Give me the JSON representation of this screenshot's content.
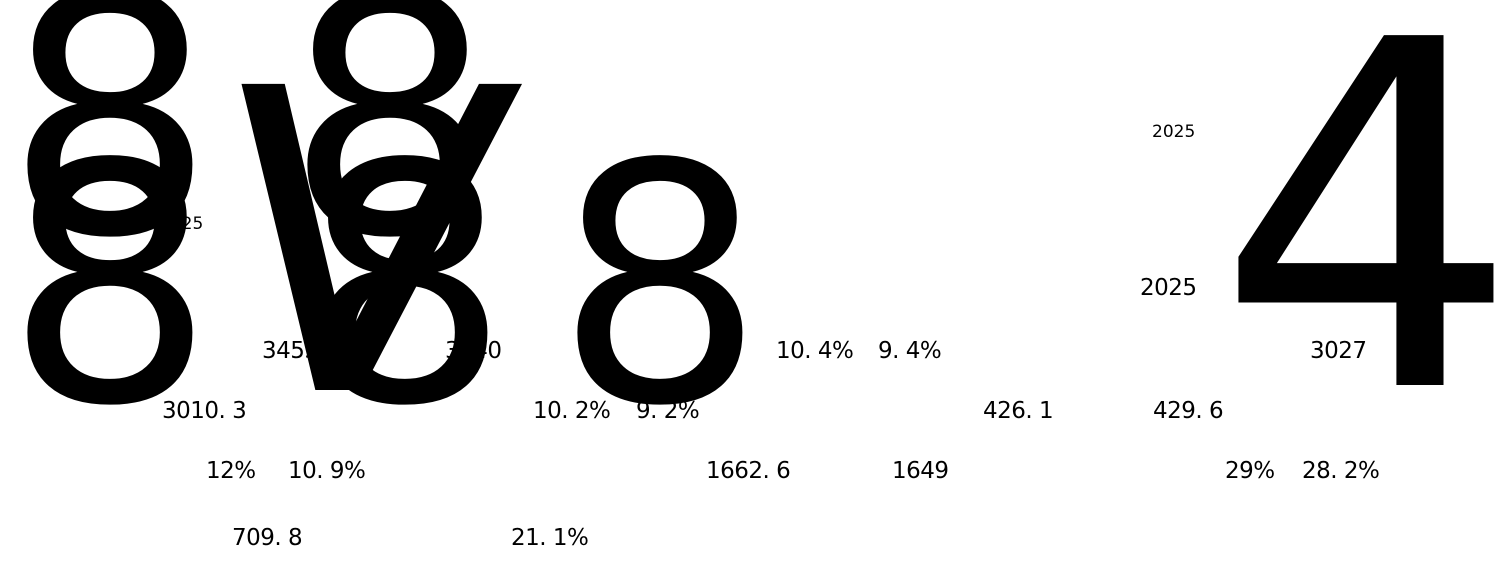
{
  "glyphs": {
    "g1": "8",
    "g2": "8",
    "g3": "8",
    "g4": "8",
    "g5": "8",
    "g6": "V",
    "g7": "4"
  },
  "labels": {
    "year_top_right": "2025",
    "year_left": "2025",
    "year_right": "2025",
    "v3453": "3453.",
    "v3440": "3440",
    "v10_4": "10. 4%",
    "v9_4": "9. 4%",
    "v3027": "3027",
    "v3010": "3010. 3",
    "v10_2": "10. 2%",
    "v9_2": "9. 2%",
    "v426": "426. 1",
    "v429": "429. 6",
    "v12": "12%",
    "v10_9": "10. 9%",
    "v1662": "1662. 6",
    "v1649": "1649",
    "v29": "29%",
    "v28_2": "28. 2%",
    "v709": "709. 8",
    "v21_1": "21. 1%"
  }
}
